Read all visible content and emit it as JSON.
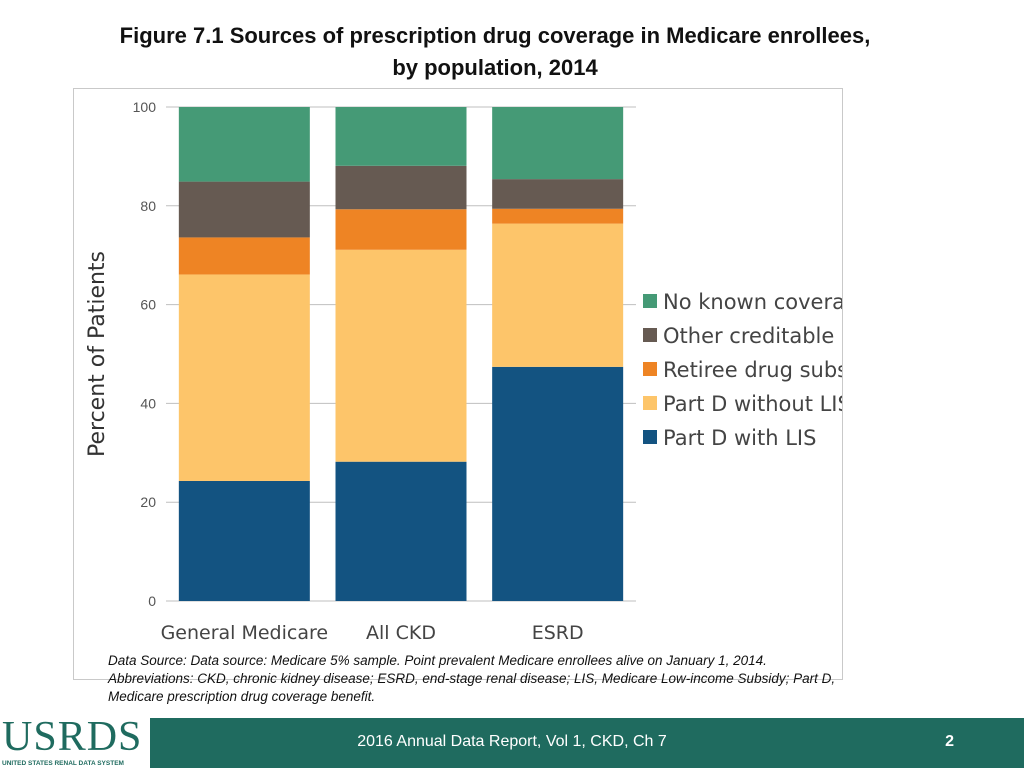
{
  "header": {
    "title_line1": "Figure 7.1  Sources of prescription drug coverage in Medicare enrollees,",
    "title_line2": "by population, 2014"
  },
  "chart_data": {
    "type": "bar",
    "stacked": true,
    "categories": [
      "General Medicare",
      "All CKD",
      "ESRD"
    ],
    "series": [
      {
        "name": "Part D with LIS",
        "color": "#135381",
        "values": [
          24.3,
          28.2,
          47.4
        ]
      },
      {
        "name": "Part D without LIS",
        "color": "#fdc56a",
        "values": [
          41.8,
          42.9,
          29.0
        ]
      },
      {
        "name": "Retiree drug subsidy",
        "color": "#ee8424",
        "values": [
          7.5,
          8.2,
          3.0
        ]
      },
      {
        "name": "Other creditable coverage",
        "color": "#665a52",
        "values": [
          11.3,
          8.8,
          6.0
        ]
      },
      {
        "name": "No known coverage",
        "color": "#459a76",
        "values": [
          15.1,
          11.9,
          14.6
        ]
      }
    ],
    "ylabel": "Percent of Patients",
    "xlabel": "",
    "ylim": [
      0,
      100
    ],
    "yticks": [
      0,
      20,
      40,
      60,
      80,
      100
    ],
    "legend_position": "right",
    "legend_order": [
      "No known coverage",
      "Other creditable coverage",
      "Retiree drug subsidy",
      "Part D without LIS",
      "Part D with LIS"
    ],
    "grid": true
  },
  "source": {
    "line1": "Data Source: Data source: Medicare 5% sample. Point prevalent Medicare enrollees alive on January 1, 2014.",
    "line2": "Abbreviations: CKD, chronic kidney disease; ESRD, end-stage renal disease; LIS, Medicare Low-income Subsidy; Part D,",
    "line3": "Medicare prescription drug coverage benefit."
  },
  "footer": {
    "report": "2016 Annual Data Report, Vol 1, CKD, Ch 7",
    "page": "2"
  },
  "logo": {
    "word": "USRDS",
    "subtitle": "UNITED STATES RENAL DATA SYSTEM"
  }
}
